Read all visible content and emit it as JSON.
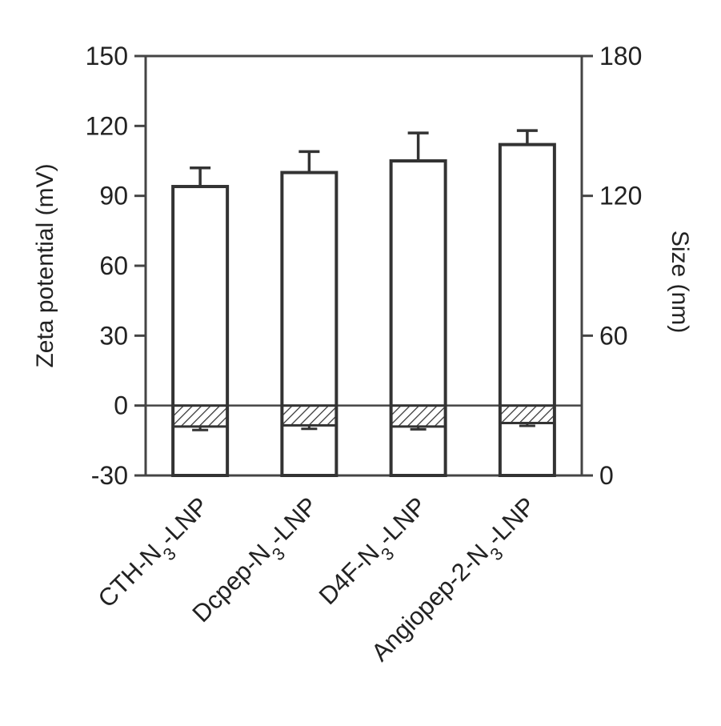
{
  "chart_data": {
    "type": "bar",
    "categories": [
      {
        "base": "CTH-N",
        "sub": "3",
        "tail": "-LNP"
      },
      {
        "base": "Dcpep-N",
        "sub": "3",
        "tail": "-LNP"
      },
      {
        "base": "D4F-N",
        "sub": "3",
        "tail": "-LNP"
      },
      {
        "base": "Angiopep-2-N",
        "sub": "3",
        "tail": "-LNP"
      }
    ],
    "series": [
      {
        "axis": "right",
        "fill": "open",
        "values": [
          124,
          130,
          135,
          142
        ],
        "errors": [
          8,
          9,
          12,
          6
        ]
      },
      {
        "axis": "left",
        "fill": "hatched",
        "values": [
          -9,
          -8.5,
          -9,
          -7.5
        ],
        "errors": [
          1.5,
          1.5,
          1.2,
          1.2
        ]
      }
    ],
    "ylabel_left": "Zeta potential (mV)",
    "ylabel_right": "Size (nm)",
    "ylim_left": [
      -30,
      150
    ],
    "ylim_right": [
      0,
      180
    ],
    "yticks_left": [
      "150",
      "120",
      "90",
      "60",
      "30",
      "0",
      "-30"
    ],
    "yticks_right": [
      "180",
      "120",
      "60",
      "0"
    ],
    "zero_line": true,
    "grid": false
  }
}
